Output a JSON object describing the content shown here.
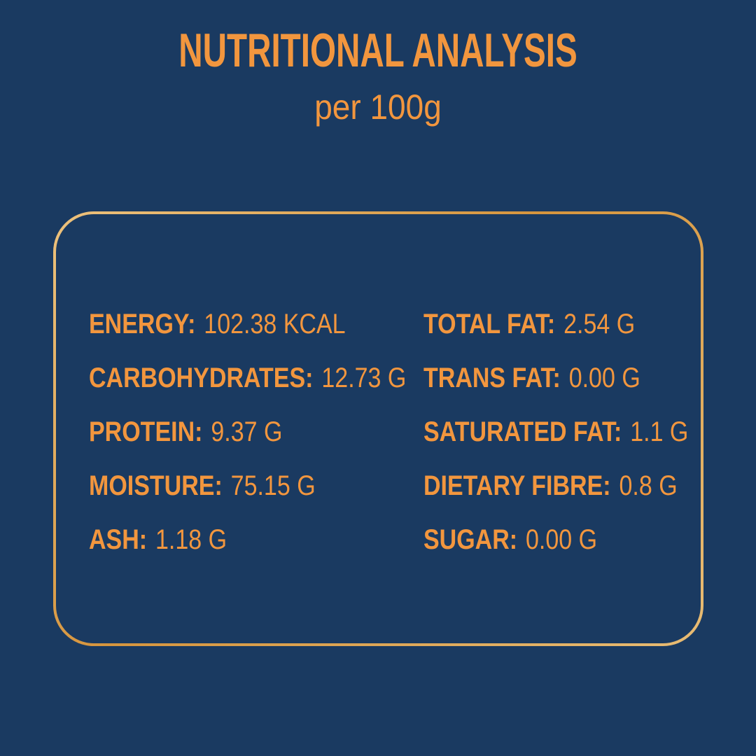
{
  "header": {
    "title": "NUTRITIONAL ANALYSIS",
    "subtitle": "per 100g"
  },
  "colors": {
    "background": "#1A3A61",
    "text_orange": "#F2963E",
    "frame_gold_light": "#EDC27D",
    "frame_gold_dark": "#D6953E"
  },
  "nutrition": {
    "left_column": [
      {
        "label": "ENERGY:",
        "value": "102.38 KCAL"
      },
      {
        "label": "CARBOHYDRATES:",
        "value": "12.73 G"
      },
      {
        "label": "PROTEIN:",
        "value": "9.37 G"
      },
      {
        "label": "MOISTURE:",
        "value": "75.15 G"
      },
      {
        "label": "ASH:",
        "value": "1.18 G"
      }
    ],
    "right_column": [
      {
        "label": "TOTAL FAT:",
        "value": "2.54 G"
      },
      {
        "label": "TRANS FAT:",
        "value": "0.00 G"
      },
      {
        "label": "SATURATED FAT:",
        "value": "1.1 G"
      },
      {
        "label": "DIETARY FIBRE:",
        "value": "0.8 G"
      },
      {
        "label": "SUGAR:",
        "value": "0.00 G"
      }
    ]
  }
}
